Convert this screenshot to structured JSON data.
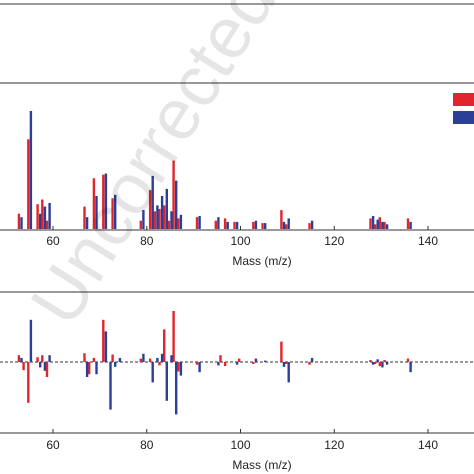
{
  "watermark": "Uncorrected",
  "colors": {
    "series_a": "#e0262c",
    "series_b": "#2b3f96",
    "axis": "#333333"
  },
  "chart_data": [
    {
      "type": "bar",
      "subtype": "mass-spectrum",
      "title": "",
      "xlabel": "Mass (m/z)",
      "ylabel": "",
      "xlim": [
        45,
        150
      ],
      "ylim": [
        0,
        1
      ],
      "xticks": [
        60,
        80,
        100,
        120,
        140
      ],
      "legend": {
        "placement": "top-right",
        "entries_visible_without_text": 2
      },
      "series": [
        {
          "color": "#e0262c",
          "x": [
            53,
            55,
            57,
            58,
            59,
            67,
            69,
            71,
            73,
            79,
            81,
            82,
            83,
            84,
            85,
            86,
            87,
            91,
            95,
            97,
            99,
            103,
            105,
            109,
            110,
            115,
            128,
            129,
            130,
            131,
            136
          ],
          "values": [
            0.13,
            0.76,
            0.21,
            0.25,
            0.07,
            0.19,
            0.43,
            0.46,
            0.26,
            0.07,
            0.33,
            0.15,
            0.17,
            0.2,
            0.07,
            0.58,
            0.09,
            0.1,
            0.07,
            0.09,
            0.06,
            0.06,
            0.05,
            0.16,
            0.04,
            0.05,
            0.09,
            0.04,
            0.1,
            0.06,
            0.09
          ]
        },
        {
          "color": "#2b3f96",
          "x": [
            53,
            55,
            57,
            58,
            59,
            67,
            69,
            71,
            73,
            79,
            81,
            82,
            83,
            84,
            85,
            86,
            87,
            91,
            95,
            97,
            99,
            103,
            105,
            109,
            110,
            115,
            128,
            129,
            130,
            131,
            136
          ],
          "values": [
            0.1,
            1.0,
            0.13,
            0.19,
            0.22,
            0.1,
            0.28,
            0.47,
            0.29,
            0.16,
            0.45,
            0.2,
            0.28,
            0.34,
            0.15,
            0.41,
            0.12,
            0.11,
            0.1,
            0.06,
            0.06,
            0.07,
            0.05,
            0.06,
            0.09,
            0.07,
            0.11,
            0.08,
            0.06,
            0.04,
            0.06
          ]
        }
      ]
    },
    {
      "type": "bar",
      "subtype": "difference-spectrum",
      "title": "",
      "xlabel": "Mass (m/z)",
      "ylabel": "",
      "xlim": [
        45,
        150
      ],
      "ylim": [
        -1,
        1
      ],
      "xticks": [
        60,
        80,
        100,
        120,
        140
      ],
      "series": [
        {
          "color": "#e0262c",
          "x": [
            53,
            54,
            55,
            57,
            58,
            59,
            67,
            68,
            69,
            71,
            73,
            79,
            81,
            83,
            84,
            86,
            87,
            91,
            96,
            97,
            100,
            103,
            109,
            110,
            115,
            128,
            129,
            130,
            131,
            136
          ],
          "values": [
            0.1,
            -0.12,
            -0.6,
            0.07,
            0.1,
            -0.22,
            0.13,
            -0.18,
            0.06,
            0.62,
            0.11,
            0.05,
            0.05,
            -0.05,
            0.48,
            0.75,
            -0.14,
            -0.04,
            0.1,
            -0.06,
            0.05,
            -0.03,
            0.3,
            -0.03,
            -0.04,
            0.03,
            -0.03,
            -0.06,
            0.03,
            0.05
          ]
        },
        {
          "color": "#2b3f96",
          "x": [
            53,
            55,
            57,
            58,
            59,
            67,
            69,
            71,
            72,
            73,
            74,
            79,
            81,
            82,
            83,
            84,
            85,
            86,
            87,
            91,
            95,
            99,
            103,
            105,
            109,
            110,
            115,
            128,
            129,
            130,
            131,
            136
          ],
          "values": [
            0.06,
            0.62,
            -0.08,
            -0.13,
            0.1,
            -0.22,
            -0.18,
            0.45,
            -0.7,
            -0.07,
            0.06,
            0.12,
            -0.3,
            0.06,
            0.12,
            -0.57,
            0.1,
            -0.77,
            -0.2,
            -0.15,
            -0.05,
            -0.04,
            0.05,
            0.02,
            -0.07,
            -0.3,
            0.06,
            -0.04,
            0.04,
            -0.08,
            -0.04,
            -0.15
          ]
        }
      ]
    }
  ]
}
